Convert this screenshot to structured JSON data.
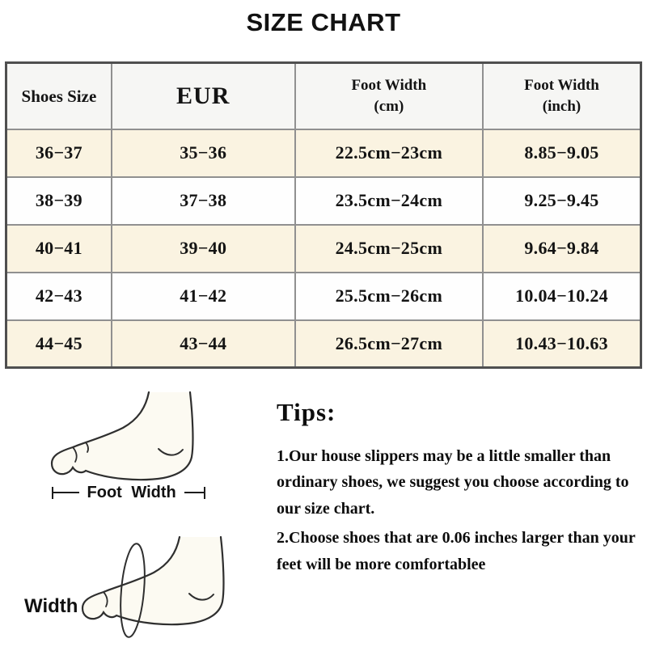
{
  "title": "SIZE CHART",
  "table": {
    "headers": [
      "Shoes Size",
      "EUR",
      "Foot Width\n(cm)",
      "Foot Width\n(inch)"
    ],
    "rows": [
      [
        "36−37",
        "35−36",
        "22.5cm−23cm",
        "8.85−9.05"
      ],
      [
        "38−39",
        "37−38",
        "23.5cm−24cm",
        "9.25−9.45"
      ],
      [
        "40−41",
        "39−40",
        "24.5cm−25cm",
        "9.64−9.84"
      ],
      [
        "42−43",
        "41−42",
        "25.5cm−26cm",
        "10.04−10.24"
      ],
      [
        "44−45",
        "43−44",
        "26.5cm−27cm",
        "10.43−10.63"
      ]
    ]
  },
  "diagrams": {
    "foot_width_label": "Foot Width",
    "width_label": "Width"
  },
  "tips": {
    "heading": "Tips:",
    "items": [
      "1.Our house slippers may be a little smaller than ordinary shoes, we suggest you choose according to our size chart.",
      "2.Choose shoes that are 0.06 inches larger than your feet will be more comfortablee"
    ]
  },
  "colors": {
    "row_alt": "#faf3e1",
    "row_white": "#fefefe",
    "header_bg": "#f6f6f4",
    "border_inner": "#909090",
    "border_outer": "#4f4f4f",
    "ink": "#141414"
  }
}
